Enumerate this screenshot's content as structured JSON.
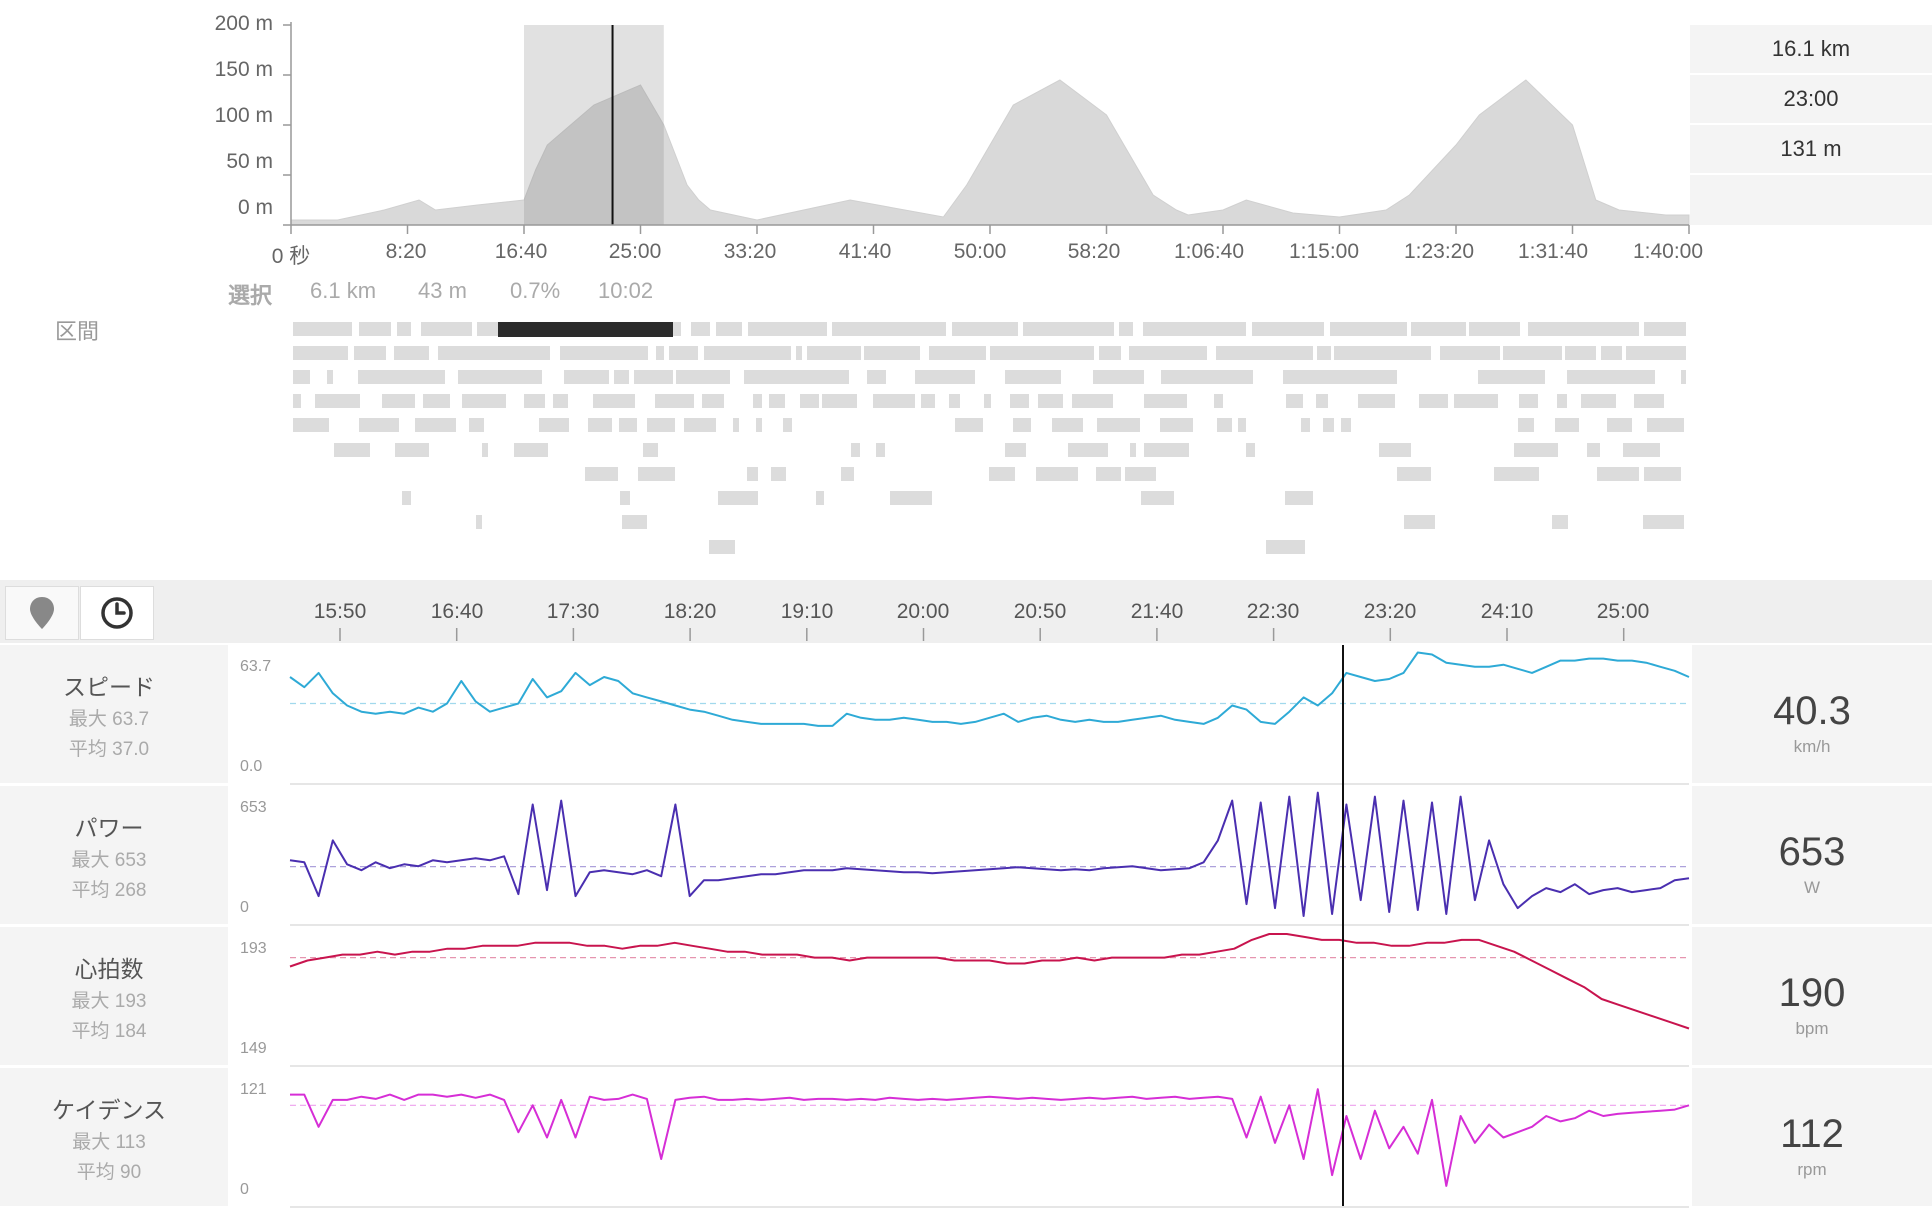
{
  "elevation": {
    "y_ticks": [
      "200 m",
      "150 m",
      "100 m",
      "50 m",
      "0 m"
    ],
    "x_ticks": [
      "0 秒",
      "8:20",
      "16:40",
      "25:00",
      "33:20",
      "41:40",
      "50:00",
      "58:20",
      "1:06:40",
      "1:15:00",
      "1:23:20",
      "1:31:40",
      "1:40:00"
    ],
    "chart_data": {
      "type": "area",
      "xlabel": "",
      "ylabel": "",
      "x_unit": "seconds",
      "ylim": [
        0,
        200
      ],
      "xlim": [
        0,
        6000
      ],
      "x": [
        0,
        200,
        400,
        550,
        620,
        800,
        1000,
        1050,
        1100,
        1300,
        1500,
        1600,
        1700,
        1750,
        1800,
        2000,
        2400,
        2800,
        2900,
        3000,
        3100,
        3300,
        3500,
        3700,
        3800,
        3850,
        4000,
        4100,
        4300,
        4500,
        4700,
        4800,
        5000,
        5100,
        5300,
        5500,
        5600,
        5700,
        5900,
        6000
      ],
      "values": [
        5,
        5,
        15,
        25,
        15,
        20,
        25,
        55,
        80,
        120,
        140,
        100,
        40,
        25,
        15,
        5,
        25,
        8,
        40,
        80,
        120,
        145,
        110,
        30,
        15,
        10,
        15,
        25,
        12,
        8,
        15,
        30,
        80,
        110,
        145,
        100,
        25,
        15,
        10,
        10
      ],
      "selection": {
        "start": 1000,
        "end": 1600,
        "cursor": 1380
      }
    }
  },
  "info": [
    "16.1 km",
    "23:00",
    "131 m"
  ],
  "selection": {
    "label": "選択",
    "distance": "6.1 km",
    "gain": "43 m",
    "grade": "0.7%",
    "time": "10:02"
  },
  "segments_label": "区間",
  "toolbar": {
    "map_icon": "map-pin-icon",
    "time_icon": "clock-icon"
  },
  "time_ticks": [
    "15:50",
    "16:40",
    "17:30",
    "18:20",
    "19:10",
    "20:00",
    "20:50",
    "21:40",
    "22:30",
    "23:20",
    "24:10",
    "25:00"
  ],
  "metrics": [
    {
      "key": "speed",
      "name": "スピード",
      "max": "最大 63.7",
      "avg": "平均 37.0",
      "axis_max": "63.7",
      "axis_min": "0.0",
      "value": "40.3",
      "unit": "km/h",
      "color": "#2eaad6",
      "chart_data": {
        "type": "line",
        "ylim": [
          0,
          63.7
        ],
        "avg": 37.0,
        "values": [
          50,
          45,
          52,
          42,
          36,
          33,
          32,
          33,
          32,
          35,
          33,
          37,
          48,
          38,
          33,
          35,
          37,
          49,
          40,
          43,
          52,
          46,
          50,
          48,
          42,
          40,
          38,
          36,
          34,
          33,
          31,
          29,
          28,
          27,
          27,
          27,
          27,
          26,
          26,
          32,
          30,
          29,
          29,
          30,
          29,
          28,
          28,
          27,
          28,
          30,
          32,
          28,
          30,
          31,
          29,
          28,
          29,
          28,
          28,
          29,
          30,
          31,
          29,
          28,
          27,
          30,
          36,
          34,
          28,
          27,
          33,
          40,
          36,
          42,
          52,
          50,
          48,
          49,
          52,
          62,
          61,
          57,
          56,
          55,
          55,
          56,
          54,
          52,
          55,
          58,
          58,
          59,
          59,
          58,
          58,
          57,
          55,
          53,
          50
        ]
      }
    },
    {
      "key": "power",
      "name": "パワー",
      "max": "最大 653",
      "avg": "平均 268",
      "axis_max": "653",
      "axis_min": "0",
      "value": "653",
      "unit": "W",
      "color": "#4a2fb0",
      "chart_data": {
        "type": "line",
        "ylim": [
          0,
          653
        ],
        "avg": 268,
        "values": [
          300,
          290,
          120,
          400,
          280,
          250,
          290,
          260,
          280,
          270,
          300,
          290,
          300,
          310,
          300,
          320,
          130,
          580,
          150,
          600,
          120,
          240,
          250,
          240,
          230,
          250,
          220,
          580,
          120,
          200,
          200,
          210,
          220,
          230,
          230,
          240,
          250,
          250,
          250,
          260,
          255,
          250,
          245,
          240,
          240,
          235,
          240,
          245,
          250,
          255,
          260,
          265,
          260,
          255,
          250,
          255,
          250,
          260,
          265,
          270,
          260,
          250,
          255,
          260,
          290,
          400,
          600,
          80,
          590,
          60,
          620,
          20,
          640,
          30,
          580,
          100,
          620,
          40,
          600,
          50,
          590,
          30,
          620,
          100,
          400,
          180,
          60,
          120,
          160,
          140,
          180,
          130,
          150,
          160,
          140,
          150,
          160,
          200,
          210
        ]
      }
    },
    {
      "key": "heart_rate",
      "name": "心拍数",
      "max": "最大 193",
      "avg": "平均 184",
      "axis_max": "193",
      "axis_min": "149",
      "value": "190",
      "unit": "bpm",
      "color": "#c8144e",
      "chart_data": {
        "type": "line",
        "ylim": [
          149,
          193
        ],
        "avg": 184,
        "values": [
          181,
          183,
          184,
          185,
          185,
          186,
          185,
          186,
          186,
          187,
          187,
          188,
          188,
          188,
          189,
          189,
          189,
          188,
          188,
          187,
          188,
          188,
          189,
          188,
          187,
          186,
          186,
          185,
          185,
          185,
          184,
          184,
          183,
          184,
          184,
          184,
          184,
          184,
          183,
          183,
          183,
          182,
          182,
          183,
          183,
          184,
          183,
          184,
          184,
          184,
          184,
          185,
          185,
          186,
          187,
          190,
          192,
          192,
          191,
          190,
          190,
          189,
          189,
          188,
          188,
          189,
          189,
          190,
          190,
          188,
          186,
          183,
          180,
          177,
          174,
          170,
          168,
          166,
          164,
          162,
          160
        ]
      }
    },
    {
      "key": "cadence",
      "name": "ケイデンス",
      "max": "最大 113",
      "avg": "平均 90",
      "axis_max": "121",
      "axis_min": "0",
      "value": "112",
      "unit": "rpm",
      "color": "#d62ed6",
      "chart_data": {
        "type": "line",
        "ylim": [
          0,
          121
        ],
        "avg": 90,
        "values": [
          100,
          100,
          70,
          95,
          95,
          98,
          96,
          100,
          95,
          100,
          100,
          98,
          100,
          97,
          100,
          95,
          65,
          90,
          60,
          95,
          60,
          98,
          95,
          96,
          100,
          96,
          40,
          95,
          97,
          98,
          95,
          95,
          96,
          95,
          96,
          97,
          95,
          96,
          96,
          95,
          96,
          95,
          97,
          96,
          95,
          96,
          95,
          96,
          97,
          98,
          97,
          96,
          97,
          96,
          95,
          96,
          97,
          96,
          97,
          98,
          96,
          97,
          98,
          96,
          97,
          98,
          96,
          60,
          98,
          55,
          90,
          40,
          105,
          25,
          80,
          40,
          85,
          50,
          70,
          45,
          95,
          15,
          80,
          55,
          72,
          60,
          65,
          70,
          80,
          75,
          78,
          85,
          80,
          82,
          83,
          84,
          85,
          86,
          90
        ]
      }
    }
  ]
}
